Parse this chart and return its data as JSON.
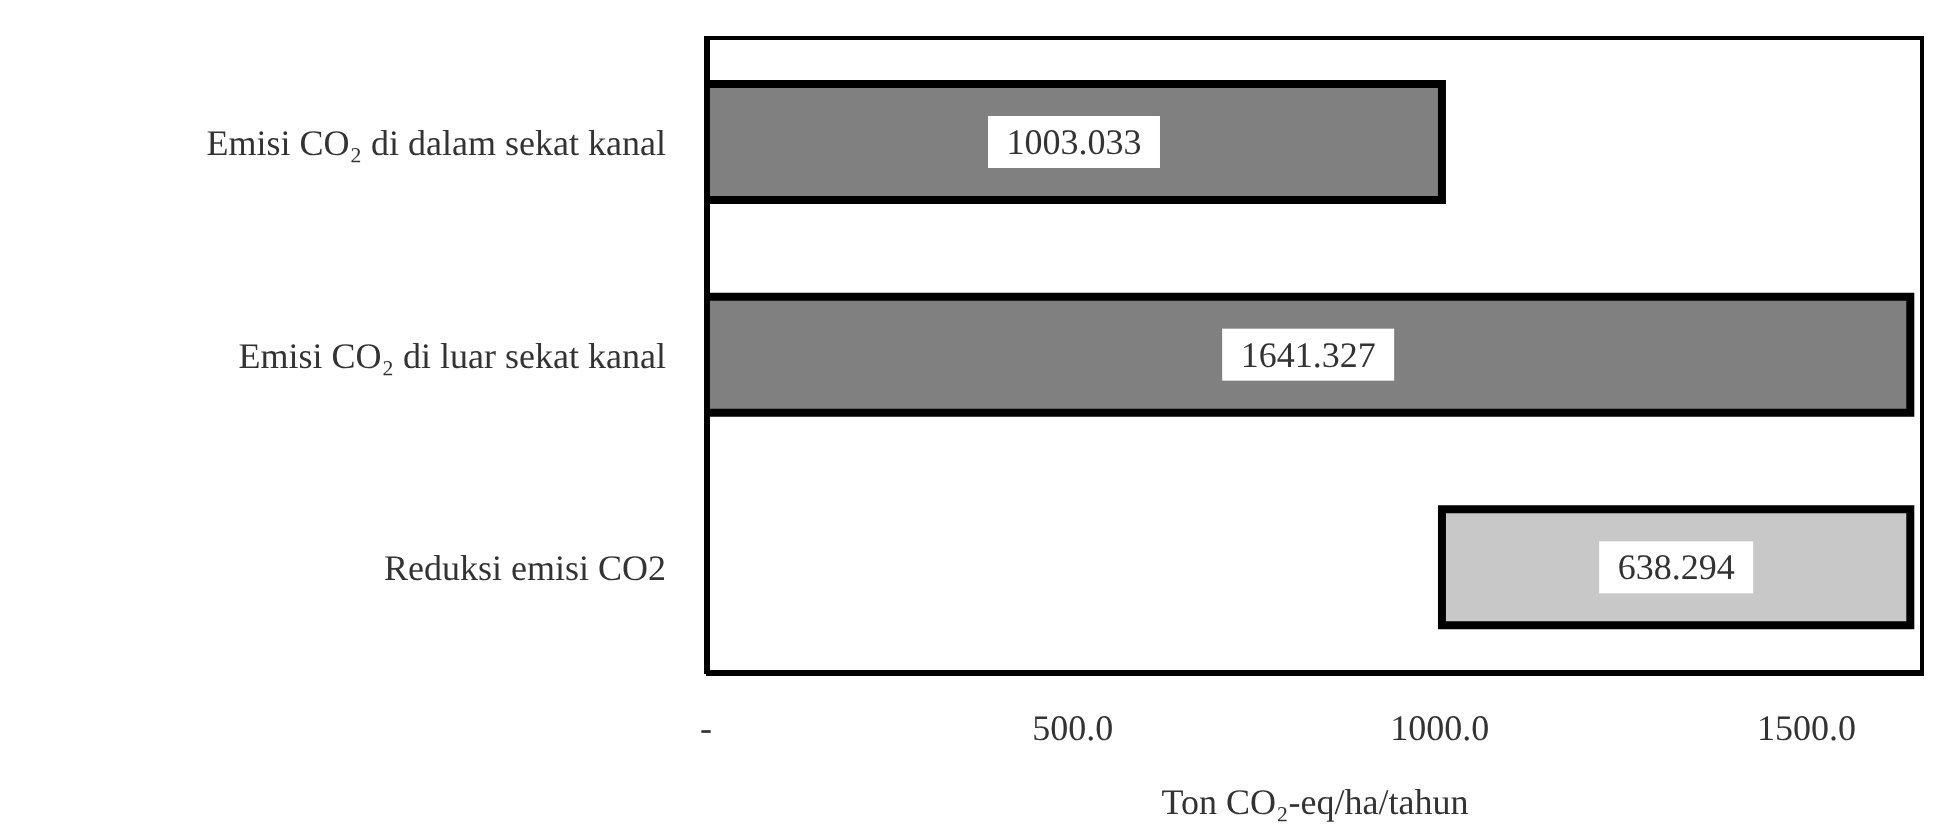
{
  "chart_data": {
    "type": "bar",
    "orientation": "horizontal",
    "categories": [
      "Emisi CO₂ di dalam sekat kanal",
      "Emisi CO₂ di luar sekat kanal",
      "Reduksi emisi CO2"
    ],
    "values": [
      1003.033,
      1641.327,
      638.294
    ],
    "base": [
      0,
      0,
      1003.033
    ],
    "colors": [
      "#808080",
      "#808080",
      "#c8c8c8"
    ],
    "xlabel": "Ton CO₂-eq/ha/tahun",
    "xlim": [
      0,
      1660
    ],
    "xticks": [
      {
        "value": 0,
        "label": "-"
      },
      {
        "value": 500,
        "label": "500.0"
      },
      {
        "value": 1000,
        "label": "1000.0"
      },
      {
        "value": 1500,
        "label": "1500.0"
      }
    ],
    "data_labels": true,
    "grid": false,
    "legend": false
  }
}
